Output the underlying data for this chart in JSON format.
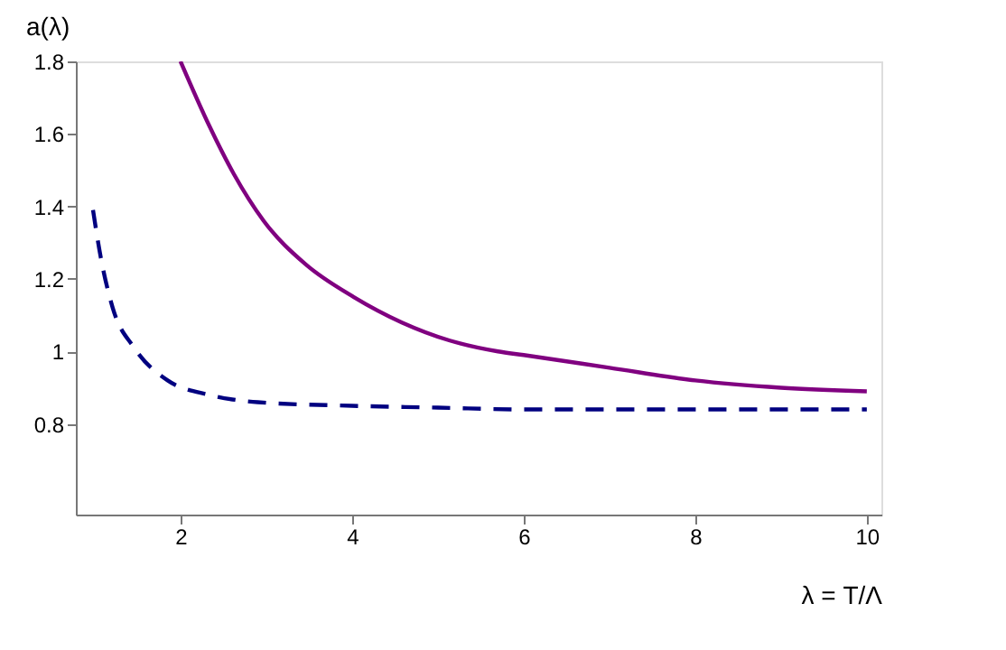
{
  "chart_data": {
    "type": "line",
    "xlabel": "λ = T/Λ",
    "ylabel": "a(λ)",
    "xlim": [
      0.78,
      10.17
    ],
    "ylim": [
      0.55,
      1.8
    ],
    "xticks": [
      2,
      4,
      6,
      8,
      10
    ],
    "yticks": [
      0.8,
      1,
      1.2,
      1.4,
      1.6,
      1.8
    ],
    "grid": false,
    "series": [
      {
        "color": "#800080",
        "line_style": "solid",
        "x": [
          2.0,
          2.34,
          2.62,
          2.97,
          3.46,
          4.02,
          4.58,
          5.14,
          5.7,
          6,
          7,
          8,
          9,
          10
        ],
        "values": [
          1.8,
          1.62,
          1.49,
          1.36,
          1.24,
          1.15,
          1.08,
          1.03,
          1.0,
          0.99,
          0.955,
          0.92,
          0.9,
          0.89
        ]
      },
      {
        "color": "#000080",
        "line_style": "dashed",
        "x": [
          0.98,
          1.07,
          1.21,
          1.46,
          1.85,
          2.34,
          2.9,
          4.0,
          5,
          6,
          7,
          8,
          9,
          10
        ],
        "values": [
          1.39,
          1.26,
          1.12,
          1.01,
          0.92,
          0.88,
          0.86,
          0.85,
          0.845,
          0.84,
          0.84,
          0.84,
          0.84,
          0.84
        ]
      }
    ]
  }
}
